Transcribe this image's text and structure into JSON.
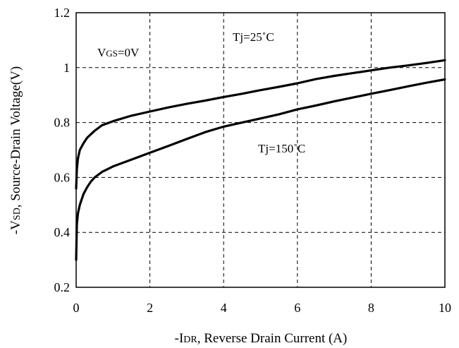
{
  "chart_data": {
    "type": "line",
    "xlabel": {
      "prefix": "-I",
      "sub": "DR",
      "suffix": ", Reverse Drain Current (A)"
    },
    "ylabel": {
      "prefix": "-V",
      "sub": "SD",
      "suffix": ", Source-Drain Voltage(V)"
    },
    "xlim": [
      0,
      10
    ],
    "ylim": [
      0.2,
      1.2
    ],
    "x_ticks": [
      0,
      2,
      4,
      6,
      8,
      10
    ],
    "y_ticks": [
      0.2,
      0.4,
      0.6,
      0.8,
      1,
      1.2
    ],
    "x_tick_labels": [
      "0",
      "2",
      "4",
      "6",
      "8",
      "10"
    ],
    "y_tick_labels": [
      "0.2",
      "0.4",
      "0.6",
      "0.8",
      "1",
      "1.2"
    ],
    "grid": true,
    "annotations": {
      "vgs": {
        "prefix": "V",
        "sub": "GS",
        "suffix": "=0V"
      },
      "tj25": "Tj=25˚C",
      "tj150": "Tj=150˚C"
    },
    "series": [
      {
        "x": [
          0.0,
          0.02,
          0.05,
          0.1,
          0.2,
          0.3,
          0.5,
          0.7,
          1.0,
          1.5,
          2.0,
          2.5,
          3.0,
          3.5,
          4.0,
          4.5,
          5.0,
          5.5,
          6.0,
          6.5,
          7.0,
          7.5,
          8.0,
          8.5,
          9.0,
          9.5,
          10.0
        ],
        "y": [
          0.56,
          0.63,
          0.67,
          0.7,
          0.725,
          0.745,
          0.77,
          0.79,
          0.805,
          0.825,
          0.84,
          0.855,
          0.868,
          0.88,
          0.893,
          0.905,
          0.918,
          0.93,
          0.943,
          0.958,
          0.97,
          0.98,
          0.99,
          1.0,
          1.008,
          1.017,
          1.027
        ]
      },
      {
        "x": [
          0.0,
          0.02,
          0.05,
          0.1,
          0.2,
          0.3,
          0.4,
          0.5,
          0.7,
          1.0,
          1.5,
          2.0,
          2.5,
          3.0,
          3.5,
          4.0,
          4.5,
          5.0,
          5.5,
          6.0,
          6.5,
          7.0,
          7.5,
          8.0,
          8.5,
          9.0,
          9.5,
          10.0
        ],
        "y": [
          0.3,
          0.43,
          0.47,
          0.5,
          0.54,
          0.565,
          0.585,
          0.6,
          0.62,
          0.64,
          0.665,
          0.69,
          0.715,
          0.74,
          0.765,
          0.785,
          0.8,
          0.815,
          0.83,
          0.848,
          0.862,
          0.877,
          0.891,
          0.905,
          0.918,
          0.932,
          0.945,
          0.957
        ]
      }
    ]
  }
}
